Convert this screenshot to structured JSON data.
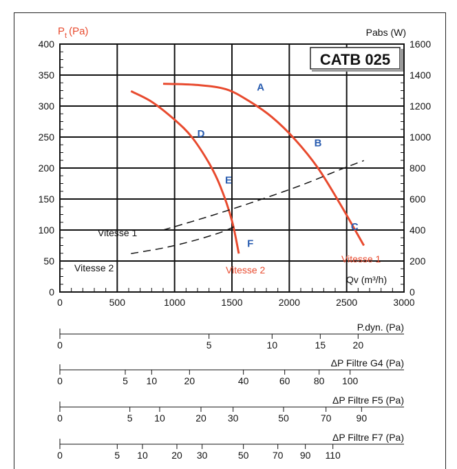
{
  "chart_data": {
    "type": "line",
    "title": "CATB 025",
    "left_axis_label": "P",
    "left_axis_label_sub": "t",
    "left_axis_label_unit": "(Pa)",
    "right_axis_label": "Pabs (W)",
    "x_axis_label": "Qv (m³/h)",
    "xlim": [
      0,
      3000
    ],
    "ylim_left": [
      0,
      400
    ],
    "ylim_right": [
      0,
      1600
    ],
    "x_ticks": [
      "0",
      "500",
      "1000",
      "1500",
      "2000",
      "2500",
      "3000"
    ],
    "y_left_ticks": [
      "0",
      "50",
      "100",
      "150",
      "200",
      "250",
      "300",
      "350",
      "400"
    ],
    "y_right_ticks": [
      "0",
      "200",
      "400",
      "600",
      "800",
      "1000",
      "1200",
      "1400",
      "1600"
    ],
    "series": [
      {
        "name": "Vitesse 1",
        "color": "#e84a2e",
        "style": "solid",
        "axis": "left",
        "x": [
          900,
          1200,
          1450,
          1650,
          1850,
          2050,
          2250,
          2450,
          2650
        ],
        "y": [
          336,
          334,
          327,
          308,
          282,
          246,
          200,
          140,
          75
        ]
      },
      {
        "name": "Vitesse 2",
        "color": "#e84a2e",
        "style": "solid",
        "axis": "left",
        "x": [
          620,
          800,
          1000,
          1150,
          1300,
          1400,
          1500,
          1560
        ],
        "y": [
          324,
          307,
          278,
          250,
          208,
          170,
          115,
          62
        ]
      },
      {
        "name": "Vitesse 1",
        "color": "#111111",
        "style": "dashed",
        "axis": "left",
        "x": [
          900,
          1300,
          1700,
          2100,
          2450,
          2650
        ],
        "y": [
          100,
          122,
          146,
          172,
          198,
          212
        ]
      },
      {
        "name": "Vitesse 2",
        "color": "#111111",
        "style": "dashed",
        "axis": "left",
        "x": [
          620,
          900,
          1150,
          1400,
          1550
        ],
        "y": [
          62,
          71,
          82,
          96,
          108
        ]
      }
    ],
    "annotations": [
      {
        "text": "Vitesse 1",
        "color": "#111111"
      },
      {
        "text": "Vitesse 2",
        "color": "#111111"
      },
      {
        "text": "Vitesse 1",
        "color": "#e84a2e"
      },
      {
        "text": "Vitesse 2",
        "color": "#e84a2e"
      }
    ],
    "point_labels": [
      {
        "label": "A",
        "x": 1750,
        "y": 325
      },
      {
        "label": "B",
        "x": 2250,
        "y": 235
      },
      {
        "label": "C",
        "x": 2570,
        "y": 100
      },
      {
        "label": "D",
        "x": 1230,
        "y": 250
      },
      {
        "label": "E",
        "x": 1470,
        "y": 175
      },
      {
        "label": "F",
        "x": 1660,
        "y": 73
      }
    ],
    "secondary_scales": [
      {
        "name": "P.dyn. (Pa)",
        "ticks": [
          {
            "label": "0",
            "x": 0
          },
          {
            "label": "5",
            "x": 1300
          },
          {
            "label": "10",
            "x": 1850
          },
          {
            "label": "15",
            "x": 2270
          },
          {
            "label": "20",
            "x": 2600
          }
        ]
      },
      {
        "name": "ΔP Filtre G4 (Pa)",
        "ticks": [
          {
            "label": "0",
            "x": 0
          },
          {
            "label": "5",
            "x": 570
          },
          {
            "label": "10",
            "x": 800
          },
          {
            "label": "20",
            "x": 1130
          },
          {
            "label": "40",
            "x": 1600
          },
          {
            "label": "60",
            "x": 1960
          },
          {
            "label": "80",
            "x": 2260
          },
          {
            "label": "100",
            "x": 2530
          }
        ]
      },
      {
        "name": "ΔP Filtre F5 (Pa)",
        "ticks": [
          {
            "label": "0",
            "x": 0
          },
          {
            "label": "5",
            "x": 610
          },
          {
            "label": "10",
            "x": 870
          },
          {
            "label": "20",
            "x": 1230
          },
          {
            "label": "30",
            "x": 1510
          },
          {
            "label": "50",
            "x": 1950
          },
          {
            "label": "70",
            "x": 2320
          },
          {
            "label": "90",
            "x": 2630
          }
        ]
      },
      {
        "name": "ΔP Filtre F7 (Pa)",
        "ticks": [
          {
            "label": "0",
            "x": 0
          },
          {
            "label": "5",
            "x": 500
          },
          {
            "label": "10",
            "x": 720
          },
          {
            "label": "20",
            "x": 1020
          },
          {
            "label": "30",
            "x": 1240
          },
          {
            "label": "50",
            "x": 1600
          },
          {
            "label": "70",
            "x": 1900
          },
          {
            "label": "90",
            "x": 2140
          },
          {
            "label": "110",
            "x": 2380
          }
        ]
      }
    ]
  }
}
